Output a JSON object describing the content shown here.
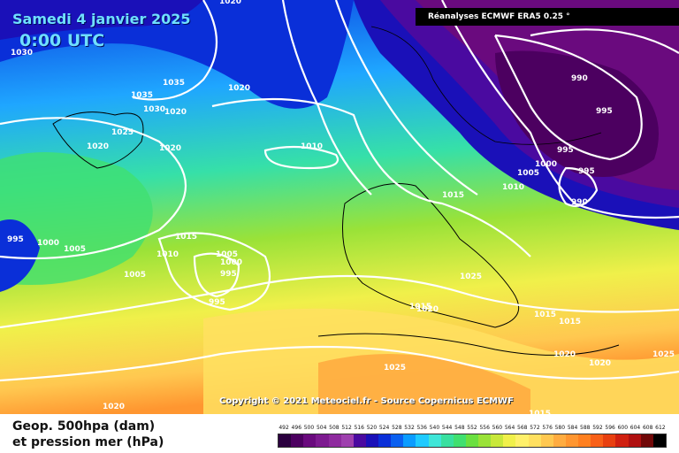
{
  "map": {
    "title_date": "Samedi 4 janvier 2025",
    "title_time": "0:00 UTC",
    "source": "Réanalyses ECMWF ERA5 0.25 °",
    "copyright": "© 2021 Meteociel.fr - Source Copernicus ECMWF",
    "copyright_prefix": "Copyright"
  },
  "legend": {
    "line1": "Geop. 500hpa (dam)",
    "line2": "et pression mer (hPa)",
    "ticks": [
      "492",
      "496",
      "500",
      "504",
      "508",
      "512",
      "516",
      "520",
      "524",
      "528",
      "532",
      "536",
      "540",
      "544",
      "548",
      "552",
      "556",
      "560",
      "564",
      "568",
      "572",
      "576",
      "580",
      "584",
      "588",
      "592",
      "596",
      "600",
      "604",
      "608",
      "612"
    ],
    "colors": [
      "#2b003f",
      "#4c0060",
      "#6a0a7e",
      "#7d1a90",
      "#8e2a9e",
      "#9e40ae",
      "#4a0aa0",
      "#1a10b8",
      "#0a2fd8",
      "#0a60f0",
      "#0a9cff",
      "#1fcaff",
      "#3fe6d8",
      "#38e0a0",
      "#40e070",
      "#6ae040",
      "#9ae238",
      "#c8e83a",
      "#f0f04a",
      "#fff06a",
      "#ffe060",
      "#ffc850",
      "#ffac40",
      "#ff9630",
      "#ff8020",
      "#f86018",
      "#e84010",
      "#d02010",
      "#b01010",
      "#700808",
      "#000000"
    ]
  },
  "pressure_labels": [
    "1030",
    "1020",
    "1035",
    "1035",
    "1030",
    "1020",
    "1025",
    "1020",
    "1020",
    "1020",
    "1010",
    "995",
    "1000",
    "1005",
    "1005",
    "1010",
    "1015",
    "1005",
    "1000",
    "995",
    "995",
    "990",
    "995",
    "995",
    "1000",
    "1005",
    "1010",
    "995",
    "990",
    "1015",
    "1025",
    "1015",
    "1020",
    "1015",
    "1015",
    "1020",
    "1020",
    "1025",
    "1025",
    "1020",
    "1015"
  ]
}
